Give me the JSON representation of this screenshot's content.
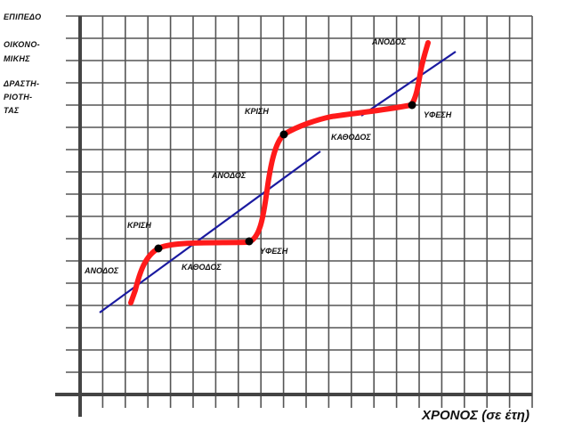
{
  "y_axis_label_lines": [
    "ΕΠΙΠΕΔΟ",
    "ΟΙΚΟΝΟ-",
    "ΜΙΚΗΣ",
    "ΔΡΑΣΤΗ-",
    "ΡΙΟΤΗ-",
    "ΤΑΣ"
  ],
  "x_axis_label": "ΧΡΟΝΟΣ (σε έτη)",
  "colors": {
    "cycle_curve": "#ff1a1a",
    "trend_line": "#1a1aa0",
    "grid": "#555555",
    "axis": "#444444",
    "points": "#000000"
  },
  "phase_labels": [
    {
      "id": "anodos-1",
      "text": "ΑΝΟΔΟΣ"
    },
    {
      "id": "krisi-1",
      "text": "ΚΡΙΣΗ"
    },
    {
      "id": "kathodos-1",
      "text": "ΚΑΘΟΔΟΣ"
    },
    {
      "id": "yfesi-1",
      "text": "ΥΦΕΣΗ"
    },
    {
      "id": "anodos-2",
      "text": "ΑΝΟΔΟΣ"
    },
    {
      "id": "krisi-2",
      "text": "ΚΡΙΣΗ"
    },
    {
      "id": "kathodos-2",
      "text": "ΚΑΘΟΔΟΣ"
    },
    {
      "id": "yfesi-2",
      "text": "ΥΦΕΣΗ"
    },
    {
      "id": "anodos-3",
      "text": "ΑΝΟΔΟΣ"
    }
  ]
}
